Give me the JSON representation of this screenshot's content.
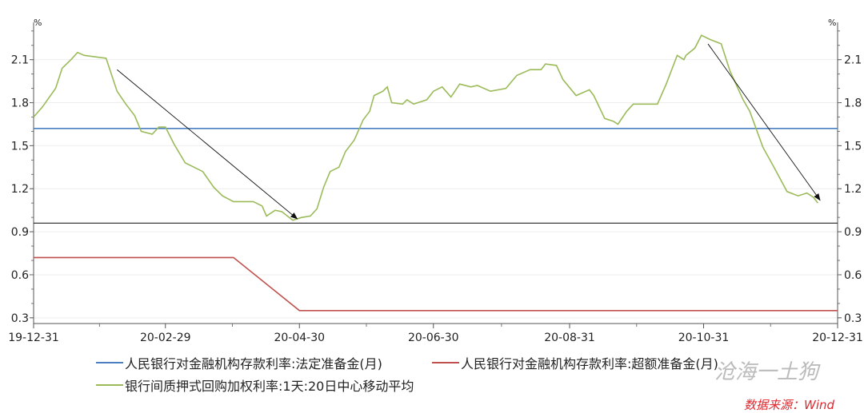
{
  "chart_data": {
    "type": "line",
    "y_unit_left": "%",
    "y_unit_right": "%",
    "ylim": [
      0.26,
      2.36
    ],
    "yticks": [
      0.3,
      0.6,
      0.9,
      1.2,
      1.5,
      1.8,
      2.1
    ],
    "ytick_labels": [
      "0.3",
      "0.6",
      "0.9",
      "1.2",
      "1.5",
      "1.8",
      "2.1"
    ],
    "xlim": [
      "2019-12-31",
      "2020-12-31"
    ],
    "xticks": [
      "2019-12-31",
      "2020-02-29",
      "2020-04-30",
      "2020-06-30",
      "2020-08-31",
      "2020-10-31",
      "2020-12-31"
    ],
    "xtick_labels": [
      "19-12-31",
      "20-02-29",
      "20-04-30",
      "20-06-30",
      "20-08-31",
      "20-10-31",
      "20-12-31"
    ],
    "grid": true,
    "legend_placement": "bottom",
    "series": [
      {
        "name": "人民银行对金融机构存款利率:法定准备金(月)",
        "color": "#4a7fc1",
        "x": [
          "2019-12-31",
          "2020-12-31"
        ],
        "y": [
          1.62,
          1.62
        ]
      },
      {
        "name": "人民银行对金融机构存款利率:超额准备金(月)",
        "color": "#c0504d",
        "x": [
          "2019-12-31",
          "2020-03-31",
          "2020-04-30",
          "2020-12-31"
        ],
        "y": [
          0.72,
          0.72,
          0.35,
          0.35
        ]
      },
      {
        "name": "银行间质押式回购加权利率:1天:20日中心移动平均",
        "color": "#9bbb59",
        "x": [
          "2019-12-31",
          "2020-01-04",
          "2020-01-10",
          "2020-01-13",
          "2020-01-17",
          "2020-01-20",
          "2020-01-23",
          "2020-02-02",
          "2020-02-07",
          "2020-02-11",
          "2020-02-15",
          "2020-02-18",
          "2020-02-23",
          "2020-02-26",
          "2020-02-29",
          "2020-03-04",
          "2020-03-09",
          "2020-03-17",
          "2020-03-22",
          "2020-03-26",
          "2020-03-31",
          "2020-04-09",
          "2020-04-13",
          "2020-04-15",
          "2020-04-19",
          "2020-04-22",
          "2020-04-27",
          "2020-05-01",
          "2020-05-05",
          "2020-05-08",
          "2020-05-11",
          "2020-05-14",
          "2020-05-18",
          "2020-05-21",
          "2020-05-25",
          "2020-05-29",
          "2020-06-01",
          "2020-06-03",
          "2020-06-07",
          "2020-06-09",
          "2020-06-11",
          "2020-06-16",
          "2020-06-18",
          "2020-06-21",
          "2020-06-27",
          "2020-06-30",
          "2020-07-04",
          "2020-07-08",
          "2020-07-12",
          "2020-07-17",
          "2020-07-20",
          "2020-07-26",
          "2020-08-02",
          "2020-08-07",
          "2020-08-13",
          "2020-08-18",
          "2020-08-20",
          "2020-08-25",
          "2020-08-28",
          "2020-09-03",
          "2020-09-09",
          "2020-09-11",
          "2020-09-16",
          "2020-09-20",
          "2020-09-22",
          "2020-09-26",
          "2020-09-29",
          "2020-10-10",
          "2020-10-14",
          "2020-10-19",
          "2020-10-22",
          "2020-10-23",
          "2020-10-27",
          "2020-10-30",
          "2020-11-03",
          "2020-11-08",
          "2020-11-12",
          "2020-11-18",
          "2020-11-21",
          "2020-11-27",
          "2020-12-02",
          "2020-12-08",
          "2020-12-13",
          "2020-12-17",
          "2020-12-20",
          "2020-12-22"
        ],
        "y": [
          1.7,
          1.77,
          1.9,
          2.04,
          2.1,
          2.15,
          2.13,
          2.11,
          1.88,
          1.79,
          1.71,
          1.6,
          1.58,
          1.63,
          1.63,
          1.51,
          1.38,
          1.32,
          1.21,
          1.15,
          1.11,
          1.11,
          1.08,
          1.01,
          1.05,
          1.04,
          0.98,
          1.0,
          1.01,
          1.06,
          1.21,
          1.32,
          1.35,
          1.46,
          1.54,
          1.68,
          1.74,
          1.85,
          1.88,
          1.91,
          1.8,
          1.79,
          1.82,
          1.79,
          1.82,
          1.88,
          1.91,
          1.84,
          1.93,
          1.91,
          1.92,
          1.88,
          1.9,
          1.99,
          2.03,
          2.03,
          2.07,
          2.06,
          1.96,
          1.85,
          1.89,
          1.85,
          1.69,
          1.67,
          1.65,
          1.74,
          1.79,
          1.79,
          1.93,
          2.13,
          2.1,
          2.13,
          2.18,
          2.27,
          2.24,
          2.21,
          2.02,
          1.82,
          1.74,
          1.49,
          1.35,
          1.18,
          1.15,
          1.17,
          1.14,
          1.1
        ]
      }
    ],
    "reference_line": {
      "y": 0.96,
      "color": "#222222"
    },
    "arrows": [
      {
        "from": [
          "2020-02-07",
          2.03
        ],
        "to": [
          "2020-04-29",
          0.99
        ]
      },
      {
        "from": [
          "2020-11-02",
          2.21
        ],
        "to": [
          "2020-12-23",
          1.12
        ]
      }
    ]
  },
  "watermark": "沧海一土狗",
  "source_note": "数据来源：Wind"
}
